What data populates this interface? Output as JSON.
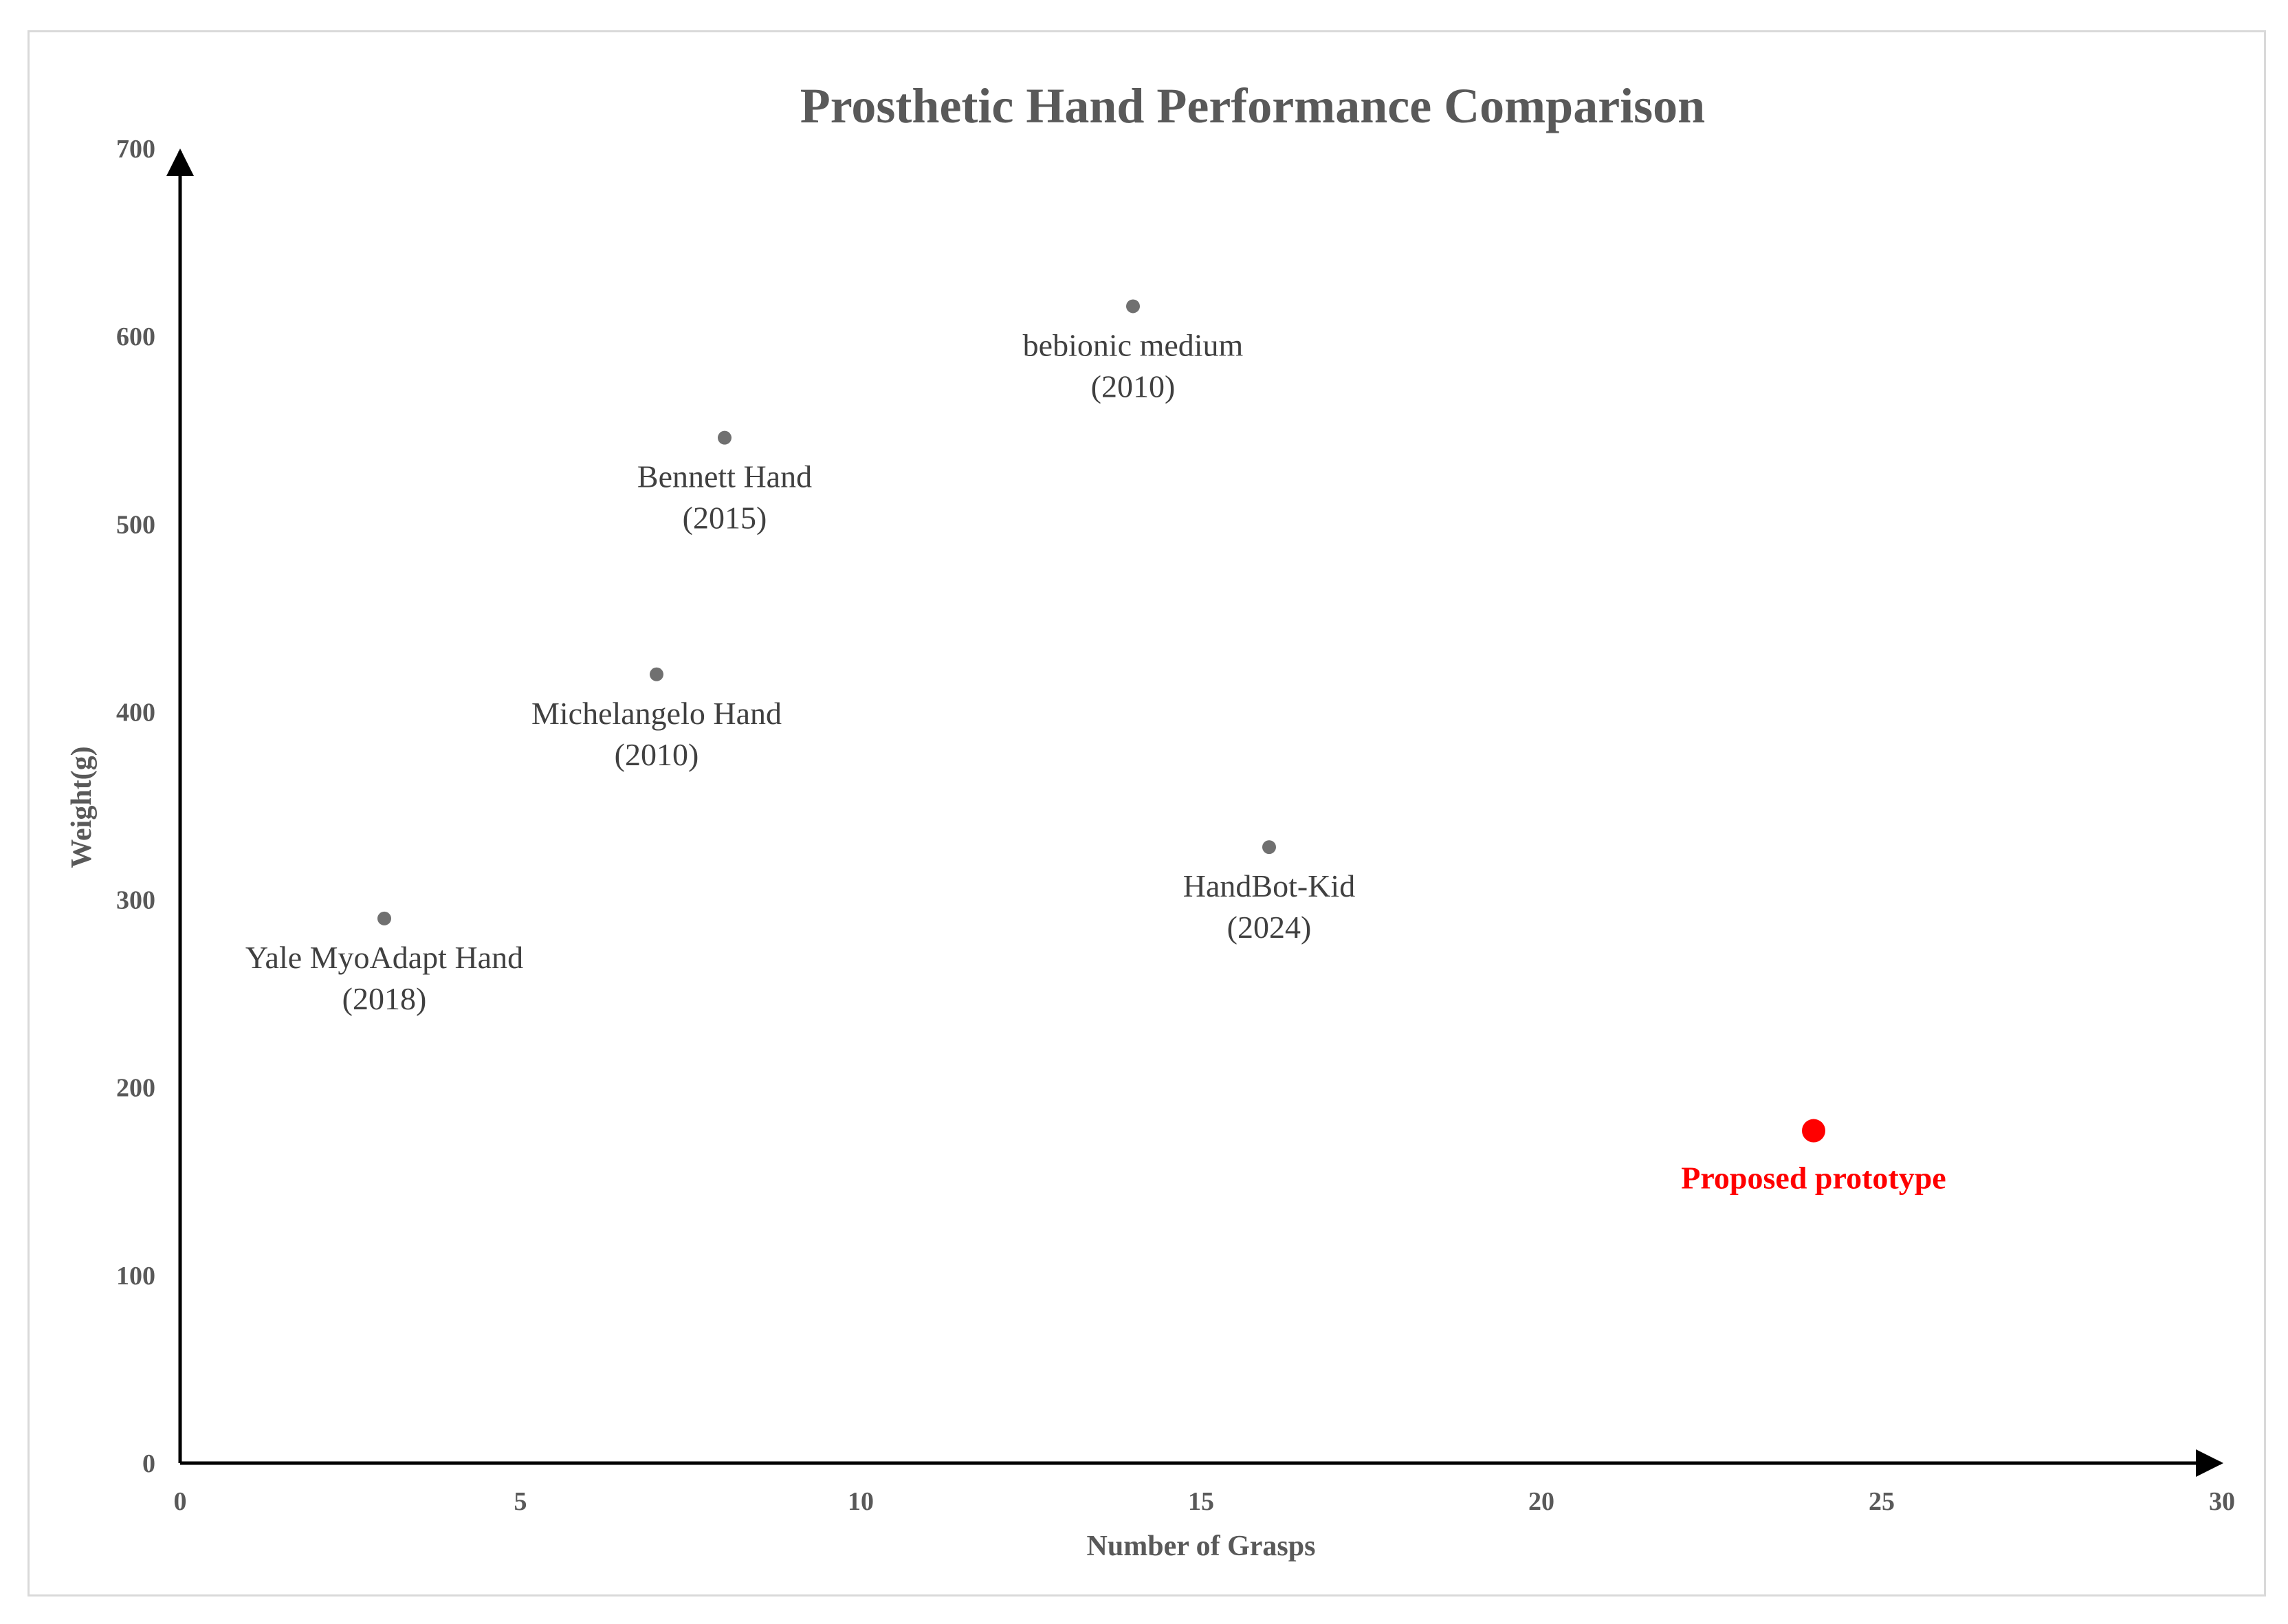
{
  "chart_data": {
    "type": "scatter",
    "title": "Prosthetic Hand Performance Comparison",
    "xlabel": "Number of Grasps",
    "ylabel": "Weight(g)",
    "xlim": [
      0,
      30
    ],
    "ylim": [
      0,
      700
    ],
    "xticks": [
      "0",
      "5",
      "10",
      "15",
      "20",
      "25",
      "30"
    ],
    "yticks": [
      "0",
      "100",
      "200",
      "300",
      "400",
      "500",
      "600",
      "700"
    ],
    "grid": false,
    "points": [
      {
        "label": "Yale MyoAdapt Hand",
        "year": "(2018)",
        "x": 3,
        "y": 290,
        "color": "#707070",
        "highlight": false
      },
      {
        "label": "Michelangelo Hand",
        "year": "(2010)",
        "x": 7,
        "y": 420,
        "color": "#707070",
        "highlight": false
      },
      {
        "label": "Bennett Hand",
        "year": "(2015)",
        "x": 8,
        "y": 546,
        "color": "#707070",
        "highlight": false
      },
      {
        "label": "bebionic medium",
        "year": "(2010)",
        "x": 14,
        "y": 616,
        "color": "#707070",
        "highlight": false
      },
      {
        "label": "HandBot-Kid",
        "year": "(2024)",
        "x": 16,
        "y": 328,
        "color": "#707070",
        "highlight": false
      },
      {
        "label": "Proposed prototype",
        "year": "",
        "x": 24,
        "y": 177,
        "color": "#ff0000",
        "highlight": true
      }
    ]
  },
  "colors": {
    "axis": "#000000",
    "text": "#595959",
    "label": "#404040",
    "highlight": "#ff0000"
  }
}
